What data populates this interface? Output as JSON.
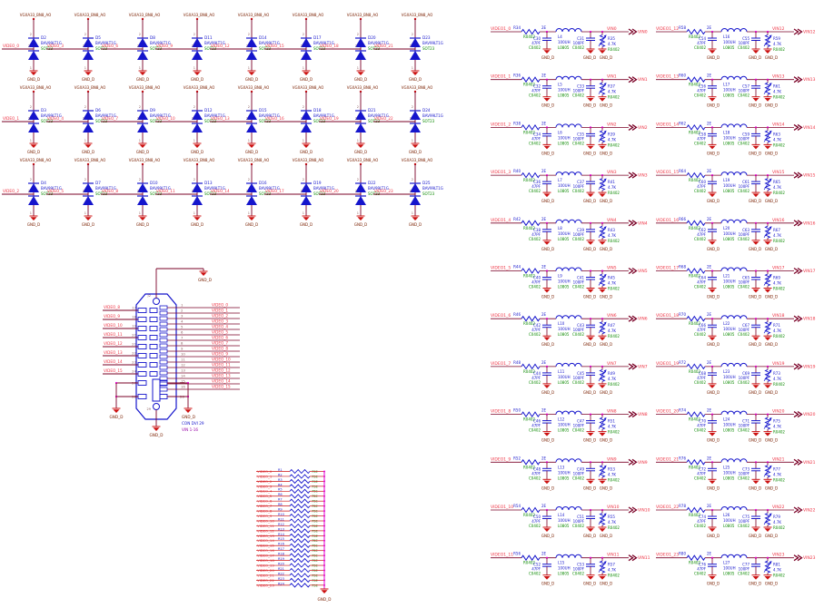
{
  "colors": {
    "wire": "#7A0026",
    "gnd": "#CC1111",
    "blue": "#1515CC",
    "green": "#0B8A00",
    "net": "#EE3344",
    "dark": "#7A2000",
    "junction": "#E800D8",
    "bus": "#E000C8",
    "pin": "#8A5A5A",
    "purple": "#9909A8"
  },
  "diode_grid": {
    "top_net": "VGXA33_BN8_AO",
    "gnd_label": "GND_D",
    "part": "BAV99LT1G",
    "package": "SOT23",
    "pin_top": "2",
    "pin_mid": "3",
    "pin_bottom": "1",
    "cells": [
      {
        "ref": "D2",
        "net": "VIDEO_0"
      },
      {
        "ref": "D3",
        "net": "VIDEO_1"
      },
      {
        "ref": "D4",
        "net": "VIDEO_2"
      },
      {
        "ref": "D5",
        "net": "VIDEO_3"
      },
      {
        "ref": "D6",
        "net": "VIDEO_4"
      },
      {
        "ref": "D7",
        "net": "VIDEO_5"
      },
      {
        "ref": "D8",
        "net": "VIDEO_6"
      },
      {
        "ref": "D9",
        "net": "VIDEO_7"
      },
      {
        "ref": "D10",
        "net": "VIDEO_8"
      },
      {
        "ref": "D11",
        "net": "VIDEO_9"
      },
      {
        "ref": "D12",
        "net": "VIDEO_10"
      },
      {
        "ref": "D13",
        "net": "VIDEO_11"
      },
      {
        "ref": "D14",
        "net": "VIDEO_12"
      },
      {
        "ref": "D15",
        "net": "VIDEO_13"
      },
      {
        "ref": "D16",
        "net": "VIDEO_14"
      },
      {
        "ref": "D17",
        "net": "VIDEO_15"
      },
      {
        "ref": "D18",
        "net": "VIDEO_16"
      },
      {
        "ref": "D19",
        "net": "VIDEO_17"
      },
      {
        "ref": "D20",
        "net": "VIDEO_18"
      },
      {
        "ref": "D21",
        "net": "VIDEO_19"
      },
      {
        "ref": "D22",
        "net": "VIDEO_20"
      },
      {
        "ref": "D23",
        "net": "VIDEO_21"
      },
      {
        "ref": "D24",
        "net": "VIDEO_22"
      },
      {
        "ref": "D25",
        "net": "VIDEO_23"
      }
    ]
  },
  "connector": {
    "designator": "J2",
    "part": "CON DVI 29",
    "value": "VIN 1-16",
    "gnd_label": "GND_D",
    "shell_pin": "29",
    "left_pins": [
      {
        "pin": "17",
        "net": "VIDEO_8"
      },
      {
        "pin": "18",
        "net": "VIDEO_9"
      },
      {
        "pin": "19",
        "net": "VIDEO_10"
      },
      {
        "pin": "20",
        "net": "VIDEO_11"
      },
      {
        "pin": "21",
        "net": "VIDEO_12"
      },
      {
        "pin": "22",
        "net": "VIDEO_13"
      },
      {
        "pin": "23",
        "net": "VIDEO_14"
      },
      {
        "pin": "24",
        "net": "VIDEO_15"
      }
    ],
    "right_pins": [
      {
        "pin": "1",
        "net": "VIDEO_0"
      },
      {
        "pin": "2",
        "net": "VIDEO_1"
      },
      {
        "pin": "3",
        "net": "VIDEO_2"
      },
      {
        "pin": "4",
        "net": "VIDEO_3"
      },
      {
        "pin": "5",
        "net": "VIDEO_4"
      },
      {
        "pin": "6",
        "net": "VIDEO_5"
      },
      {
        "pin": "7",
        "net": "VIDEO_6"
      },
      {
        "pin": "8",
        "net": "VIDEO_7"
      },
      {
        "pin": "9",
        "net": "VIDEO_8"
      },
      {
        "pin": "10",
        "net": "VIDEO_9"
      },
      {
        "pin": "11",
        "net": "VIDEO_10"
      },
      {
        "pin": "12",
        "net": "VIDEO_11"
      },
      {
        "pin": "13",
        "net": "VIDEO_12"
      },
      {
        "pin": "14",
        "net": "VIDEO_13"
      },
      {
        "pin": "15",
        "net": "VIDEO_14"
      },
      {
        "pin": "16",
        "net": "VIDEO_15"
      }
    ],
    "bottom_left_pins": [
      "27",
      "28"
    ],
    "bottom_right_pins": [
      "25",
      "26"
    ]
  },
  "termination": {
    "value": "75E",
    "gnd_label": "GND_D",
    "rows": [
      {
        "ref": "R1",
        "net": "VIDEO_0"
      },
      {
        "ref": "R2",
        "net": "VIDEO_1"
      },
      {
        "ref": "R3",
        "net": "VIDEO_2"
      },
      {
        "ref": "R4",
        "net": "VIDEO_3"
      },
      {
        "ref": "R5",
        "net": "VIDEO_4"
      },
      {
        "ref": "R6",
        "net": "VIDEO_5"
      },
      {
        "ref": "R7",
        "net": "VIDEO_6"
      },
      {
        "ref": "R8",
        "net": "VIDEO_7"
      },
      {
        "ref": "R9",
        "net": "VIDEO_8"
      },
      {
        "ref": "R10",
        "net": "VIDEO_9"
      },
      {
        "ref": "R11",
        "net": "VIDEO_10"
      },
      {
        "ref": "R12",
        "net": "VIDEO_11"
      },
      {
        "ref": "R13",
        "net": "VIDEO_12"
      },
      {
        "ref": "R14",
        "net": "VIDEO_13"
      },
      {
        "ref": "R15",
        "net": "VIDEO_14"
      },
      {
        "ref": "R16",
        "net": "VIDEO_15"
      },
      {
        "ref": "R17",
        "net": "VIDEO_16"
      },
      {
        "ref": "R18",
        "net": "VIDEO_17"
      },
      {
        "ref": "R19",
        "net": "VIDEO_18"
      },
      {
        "ref": "R20",
        "net": "VIDEO_19"
      },
      {
        "ref": "R21",
        "net": "VIDEO_20"
      },
      {
        "ref": "R22",
        "net": "VIDEO_21"
      },
      {
        "ref": "R23",
        "net": "VIDEO_22"
      },
      {
        "ref": "R24",
        "net": "VIDEO_23"
      }
    ]
  },
  "filters": {
    "series_r_value": "2E",
    "r_pkg": "R0402",
    "cap1_value": "47PF",
    "cap2_value": "100PF",
    "cap_pkg": "C0402",
    "ind_value": "100UH",
    "ind_pkg": "L0805",
    "shunt_r_value": "4.7K",
    "gnd_label": "GND_D",
    "left": [
      {
        "in": "VIDEO1_0",
        "out": "VIN0",
        "rs": "R34",
        "c1": "C30",
        "l": "L4",
        "c2": "C31",
        "rsh": "R35"
      },
      {
        "in": "VIDEO1_1",
        "out": "VIN1",
        "rs": "R36",
        "c1": "C32",
        "l": "L5",
        "c2": "C33",
        "rsh": "R37"
      },
      {
        "in": "VIDEO1_2",
        "out": "VIN2",
        "rs": "R38",
        "c1": "C34",
        "l": "L6",
        "c2": "C35",
        "rsh": "R39"
      },
      {
        "in": "VIDEO1_3",
        "out": "VIN3",
        "rs": "R40",
        "c1": "C36",
        "l": "L7",
        "c2": "C37",
        "rsh": "R41"
      },
      {
        "in": "VIDEO1_4",
        "out": "VIN4",
        "rs": "R42",
        "c1": "C38",
        "l": "L8",
        "c2": "C39",
        "rsh": "R43"
      },
      {
        "in": "VIDEO1_5",
        "out": "VIN5",
        "rs": "R44",
        "c1": "C40",
        "l": "L9",
        "c2": "C41",
        "rsh": "R45"
      },
      {
        "in": "VIDEO1_6",
        "out": "VIN6",
        "rs": "R46",
        "c1": "C42",
        "l": "L10",
        "c2": "C43",
        "rsh": "R47"
      },
      {
        "in": "VIDEO1_7",
        "out": "VIN7",
        "rs": "R48",
        "c1": "C44",
        "l": "L11",
        "c2": "C45",
        "rsh": "R49"
      },
      {
        "in": "VIDEO1_8",
        "out": "VIN8",
        "rs": "R50",
        "c1": "C46",
        "l": "L12",
        "c2": "C47",
        "rsh": "R51"
      },
      {
        "in": "VIDEO1_9",
        "out": "VIN9",
        "rs": "R52",
        "c1": "C48",
        "l": "L13",
        "c2": "C49",
        "rsh": "R53"
      },
      {
        "in": "VIDEO1_10",
        "out": "VIN10",
        "rs": "R54",
        "c1": "C50",
        "l": "L14",
        "c2": "C51",
        "rsh": "R55"
      },
      {
        "in": "VIDEO1_11",
        "out": "VIN11",
        "rs": "R56",
        "c1": "C52",
        "l": "L15",
        "c2": "C53",
        "rsh": "R57"
      }
    ],
    "right": [
      {
        "in": "VIDEO1_12",
        "out": "VIN12",
        "rs": "R58",
        "c1": "C54",
        "l": "L16",
        "c2": "C55",
        "rsh": "R59"
      },
      {
        "in": "VIDEO1_13",
        "out": "VIN13",
        "rs": "R60",
        "c1": "C56",
        "l": "L17",
        "c2": "C57",
        "rsh": "R61"
      },
      {
        "in": "VIDEO1_14",
        "out": "VIN14",
        "rs": "R62",
        "c1": "C58",
        "l": "L18",
        "c2": "C59",
        "rsh": "R63"
      },
      {
        "in": "VIDEO1_15",
        "out": "VIN15",
        "rs": "R64",
        "c1": "C60",
        "l": "L19",
        "c2": "C61",
        "rsh": "R65"
      },
      {
        "in": "VIDEO1_16",
        "out": "VIN16",
        "rs": "R66",
        "c1": "C62",
        "l": "L20",
        "c2": "C63",
        "rsh": "R67"
      },
      {
        "in": "VIDEO1_17",
        "out": "VIN17",
        "rs": "R68",
        "c1": "C64",
        "l": "L21",
        "c2": "C65",
        "rsh": "R69"
      },
      {
        "in": "VIDEO1_18",
        "out": "VIN18",
        "rs": "R70",
        "c1": "C66",
        "l": "L22",
        "c2": "C67",
        "rsh": "R71"
      },
      {
        "in": "VIDEO1_19",
        "out": "VIN19",
        "rs": "R72",
        "c1": "C68",
        "l": "L23",
        "c2": "C69",
        "rsh": "R73"
      },
      {
        "in": "VIDEO1_20",
        "out": "VIN20",
        "rs": "R74",
        "c1": "C70",
        "l": "L24",
        "c2": "C71",
        "rsh": "R75"
      },
      {
        "in": "VIDEO1_21",
        "out": "VIN21",
        "rs": "R76",
        "c1": "C72",
        "l": "L25",
        "c2": "C73",
        "rsh": "R77"
      },
      {
        "in": "VIDEO1_22",
        "out": "VIN22",
        "rs": "R78",
        "c1": "C74",
        "l": "L26",
        "c2": "C75",
        "rsh": "R79"
      },
      {
        "in": "VIDEO1_23",
        "out": "VIN23",
        "rs": "R80",
        "c1": "C76",
        "l": "L27",
        "c2": "C77",
        "rsh": "R81"
      }
    ]
  }
}
